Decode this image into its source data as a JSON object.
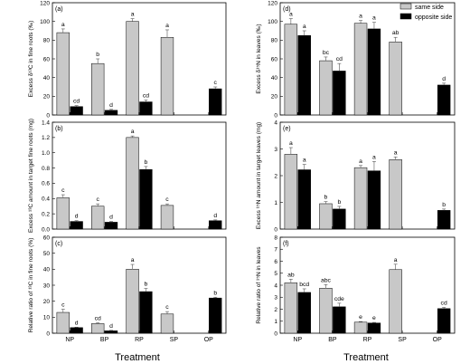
{
  "chart_data": [
    {
      "type": "bar",
      "panel_label": "(a)",
      "ylabel": "Excess δ¹³C in fine roots (‰)",
      "ylim": [
        0,
        120
      ],
      "yticks": [
        0,
        20,
        40,
        60,
        80,
        100,
        120
      ],
      "categories": [
        "NP",
        "BP",
        "RP",
        "SP",
        "OP"
      ],
      "series": [
        {
          "name": "same side",
          "color": "#c8c8c8",
          "values": [
            88,
            55,
            100,
            83,
            null
          ],
          "errors": [
            4,
            5,
            3,
            8,
            null
          ],
          "letters": [
            "a",
            "b",
            "a",
            "a",
            ""
          ]
        },
        {
          "name": "opposite side",
          "color": "#000000",
          "values": [
            9,
            5,
            14,
            null,
            28
          ],
          "errors": [
            1,
            1,
            2,
            null,
            2
          ],
          "letters": [
            "cd",
            "d",
            "cd",
            "",
            "c"
          ]
        }
      ]
    },
    {
      "type": "bar",
      "panel_label": "(d)",
      "ylabel": "Excess δ¹⁵N in leaves (‰)",
      "ylim": [
        0,
        120
      ],
      "yticks": [
        0,
        20,
        40,
        60,
        80,
        100,
        120
      ],
      "categories": [
        "NP",
        "BP",
        "RP",
        "SP",
        "OP"
      ],
      "series": [
        {
          "name": "same side",
          "color": "#c8c8c8",
          "values": [
            97,
            58,
            98,
            78,
            null
          ],
          "errors": [
            6,
            4,
            3,
            5,
            null
          ],
          "letters": [
            "a",
            "bc",
            "a",
            "ab",
            ""
          ]
        },
        {
          "name": "opposite side",
          "color": "#000000",
          "values": [
            85,
            47,
            92,
            null,
            32
          ],
          "errors": [
            5,
            8,
            7,
            null,
            2
          ],
          "letters": [
            "a",
            "cd",
            "a",
            "",
            "d"
          ]
        }
      ]
    },
    {
      "type": "bar",
      "panel_label": "(b)",
      "ylabel": "Excess ¹³C amount in target fine roots (mg)",
      "ylim": [
        0,
        1.4
      ],
      "yticks": [
        0.0,
        0.2,
        0.4,
        0.6,
        0.8,
        1.0,
        1.2,
        1.4
      ],
      "categories": [
        "NP",
        "BP",
        "RP",
        "SP",
        "OP"
      ],
      "series": [
        {
          "name": "same side",
          "color": "#c8c8c8",
          "values": [
            0.41,
            0.3,
            1.2,
            0.31,
            null
          ],
          "errors": [
            0.04,
            0.03,
            0.02,
            0.02,
            null
          ],
          "letters": [
            "c",
            "c",
            "a",
            "c",
            ""
          ]
        },
        {
          "name": "opposite side",
          "color": "#000000",
          "values": [
            0.1,
            0.09,
            0.78,
            null,
            0.11
          ],
          "errors": [
            0.01,
            0.01,
            0.04,
            null,
            0.01
          ],
          "letters": [
            "d",
            "d",
            "b",
            "",
            "d"
          ]
        }
      ]
    },
    {
      "type": "bar",
      "panel_label": "(e)",
      "ylabel": "Excess ¹⁵N amount in target leaves (mg)",
      "ylim": [
        0,
        4
      ],
      "yticks": [
        0,
        1,
        2,
        3,
        4
      ],
      "categories": [
        "NP",
        "BP",
        "RP",
        "SP",
        "OP"
      ],
      "series": [
        {
          "name": "same side",
          "color": "#c8c8c8",
          "values": [
            2.8,
            0.95,
            2.3,
            2.6,
            null
          ],
          "errors": [
            0.25,
            0.08,
            0.08,
            0.1,
            null
          ],
          "letters": [
            "a",
            "b",
            "a",
            "a",
            ""
          ]
        },
        {
          "name": "opposite side",
          "color": "#000000",
          "values": [
            2.22,
            0.75,
            2.18,
            null,
            0.7
          ],
          "errors": [
            0.2,
            0.1,
            0.35,
            null,
            0.05
          ],
          "letters": [
            "a",
            "b",
            "a",
            "",
            "b"
          ]
        }
      ]
    },
    {
      "type": "bar",
      "panel_label": "(c)",
      "ylabel": "Relative ratio of ¹³C in fine roots (%)",
      "ylim": [
        0,
        60
      ],
      "yticks": [
        0,
        10,
        20,
        30,
        40,
        50,
        60
      ],
      "categories": [
        "NP",
        "BP",
        "RP",
        "SP",
        "OP"
      ],
      "series": [
        {
          "name": "same side",
          "color": "#c8c8c8",
          "values": [
            13,
            6,
            40,
            12,
            null
          ],
          "errors": [
            2,
            0.5,
            3,
            1.5,
            null
          ],
          "letters": [
            "c",
            "cd",
            "a",
            "c",
            ""
          ]
        },
        {
          "name": "opposite side",
          "color": "#000000",
          "values": [
            3.5,
            1.5,
            26,
            null,
            22
          ],
          "errors": [
            0.3,
            0.3,
            2,
            null,
            0.5
          ],
          "letters": [
            "d",
            "d",
            "b",
            "",
            "b"
          ]
        }
      ]
    },
    {
      "type": "bar",
      "panel_label": "(f)",
      "ylabel": "Relative ratio of ¹⁵N in leaves",
      "ylim": [
        0,
        8
      ],
      "yticks": [
        0,
        1,
        2,
        3,
        4,
        5,
        6,
        7,
        8
      ],
      "categories": [
        "NP",
        "BP",
        "RP",
        "SP",
        "OP"
      ],
      "series": [
        {
          "name": "same side",
          "color": "#c8c8c8",
          "values": [
            4.2,
            3.75,
            0.92,
            5.3,
            null
          ],
          "errors": [
            0.3,
            0.3,
            0.05,
            0.45,
            null
          ],
          "letters": [
            "ab",
            "abc",
            "e",
            "a",
            ""
          ]
        },
        {
          "name": "opposite side",
          "color": "#000000",
          "values": [
            3.4,
            2.2,
            0.85,
            null,
            2.05
          ],
          "errors": [
            0.3,
            0.3,
            0.05,
            null,
            0.1
          ],
          "letters": [
            "bcd",
            "cde",
            "e",
            "",
            "cd"
          ]
        }
      ]
    }
  ],
  "legend": {
    "position": "top-right",
    "items": [
      {
        "label": "same side",
        "color": "#c8c8c8"
      },
      {
        "label": "opposite side",
        "color": "#000000"
      }
    ]
  },
  "xlabel": "Treatment"
}
